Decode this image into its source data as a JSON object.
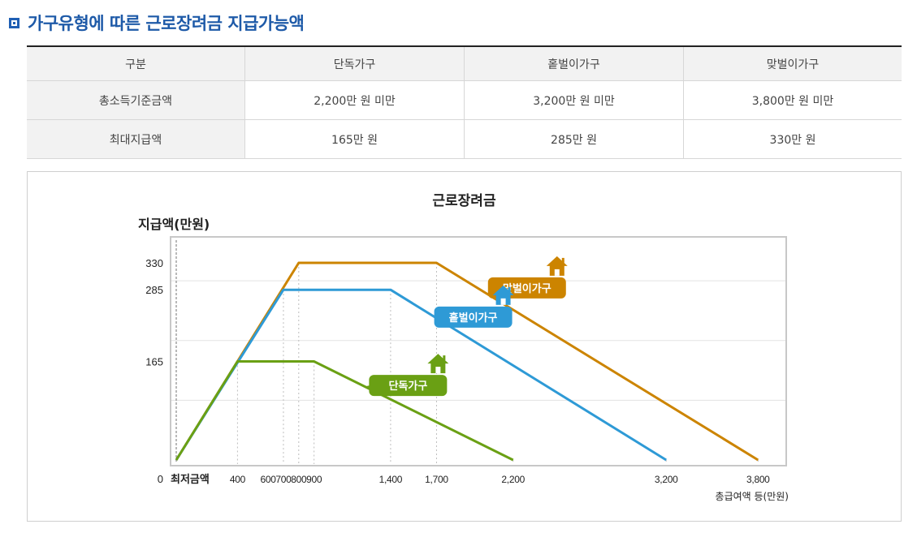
{
  "section_title": "가구유형에 따른 근로장려금 지급가능액",
  "table": {
    "headers": [
      "구분",
      "단독가구",
      "홑벌이가구",
      "맞벌이가구"
    ],
    "rows": [
      {
        "label": "총소득기준금액",
        "values": [
          "2,200만 원 미만",
          "3,200만 원 미만",
          "3,800만 원 미만"
        ]
      },
      {
        "label": "최대지급액",
        "values": [
          "165만 원",
          "285만 원",
          "330만 원"
        ]
      }
    ]
  },
  "chart_data": {
    "type": "line",
    "title": "근로장려금",
    "ylabel": "지급액(만원)",
    "xlabel": "총급여액 등(만원)",
    "origin_label": "0",
    "x_start_label": "최저금액",
    "xlim": [
      0,
      4000
    ],
    "ylim": [
      0,
      400
    ],
    "x_ticks": [
      {
        "value": 400,
        "label": "400"
      },
      {
        "value": 600,
        "label": "600"
      },
      {
        "value": 700,
        "label": "700"
      },
      {
        "value": 800,
        "label": "800"
      },
      {
        "value": 900,
        "label": "900"
      },
      {
        "value": 1400,
        "label": "1,400"
      },
      {
        "value": 1700,
        "label": "1,700"
      },
      {
        "value": 2200,
        "label": "2,200"
      },
      {
        "value": 3200,
        "label": "3,200"
      },
      {
        "value": 3800,
        "label": "3,800"
      }
    ],
    "y_ticks": [
      165,
      285,
      330
    ],
    "grid_y": [
      100,
      200,
      300
    ],
    "series": [
      {
        "name": "맞벌이가구",
        "color": "#cc8400",
        "x": [
          0,
          800,
          1700,
          3800
        ],
        "y": [
          0,
          330,
          330,
          0
        ]
      },
      {
        "name": "홑벌이가구",
        "color": "#2e9ad6",
        "x": [
          0,
          700,
          1400,
          3200
        ],
        "y": [
          0,
          285,
          285,
          0
        ]
      },
      {
        "name": "단독가구",
        "color": "#6aa014",
        "x": [
          0,
          400,
          900,
          2200
        ],
        "y": [
          0,
          165,
          165,
          0
        ]
      }
    ],
    "icon": "house-icon"
  }
}
